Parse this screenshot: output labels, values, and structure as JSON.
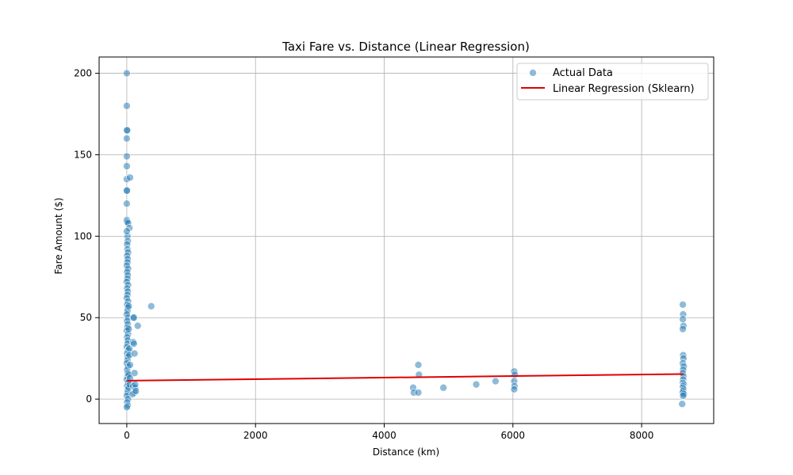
{
  "chart_data": {
    "type": "scatter",
    "title": "Taxi Fare vs. Distance (Linear Regression)",
    "xlabel": "Distance (km)",
    "ylabel": "Fare Amount ($)",
    "xlim": [
      -430,
      9120
    ],
    "ylim": [
      -15,
      210
    ],
    "xticks": [
      0,
      2000,
      4000,
      6000,
      8000
    ],
    "yticks": [
      0,
      50,
      100,
      150,
      200
    ],
    "grid": true,
    "legend_position": "top-right",
    "colors": {
      "points": "#1f77b4",
      "line": "#e00000"
    },
    "series": [
      {
        "name": "Actual Data",
        "kind": "scatter",
        "points": [
          [
            0,
            200
          ],
          [
            0,
            180
          ],
          [
            2,
            165
          ],
          [
            5,
            165
          ],
          [
            0,
            160
          ],
          [
            0,
            149
          ],
          [
            0,
            143
          ],
          [
            0,
            135
          ],
          [
            0,
            128
          ],
          [
            2,
            128
          ],
          [
            50,
            136
          ],
          [
            0,
            120
          ],
          [
            0,
            110
          ],
          [
            5,
            109
          ],
          [
            20,
            108
          ],
          [
            40,
            105
          ],
          [
            10,
            100
          ],
          [
            0,
            103
          ],
          [
            15,
            97
          ],
          [
            5,
            95
          ],
          [
            10,
            92
          ],
          [
            20,
            90
          ],
          [
            5,
            88
          ],
          [
            15,
            86
          ],
          [
            10,
            84
          ],
          [
            0,
            82
          ],
          [
            20,
            80
          ],
          [
            5,
            78
          ],
          [
            15,
            76
          ],
          [
            10,
            74
          ],
          [
            0,
            72
          ],
          [
            20,
            70
          ],
          [
            5,
            68
          ],
          [
            15,
            66
          ],
          [
            10,
            64
          ],
          [
            0,
            62
          ],
          [
            20,
            60
          ],
          [
            5,
            58
          ],
          [
            15,
            56
          ],
          [
            10,
            54
          ],
          [
            0,
            52
          ],
          [
            20,
            50
          ],
          [
            5,
            48
          ],
          [
            15,
            46
          ],
          [
            10,
            44
          ],
          [
            0,
            42
          ],
          [
            20,
            40
          ],
          [
            5,
            38
          ],
          [
            15,
            36
          ],
          [
            10,
            34
          ],
          [
            0,
            32
          ],
          [
            20,
            30
          ],
          [
            5,
            28
          ],
          [
            15,
            26
          ],
          [
            10,
            24
          ],
          [
            0,
            22
          ],
          [
            20,
            20
          ],
          [
            5,
            18
          ],
          [
            15,
            16
          ],
          [
            10,
            14
          ],
          [
            0,
            12
          ],
          [
            20,
            10
          ],
          [
            5,
            8
          ],
          [
            15,
            6
          ],
          [
            10,
            4
          ],
          [
            0,
            2
          ],
          [
            20,
            0
          ],
          [
            5,
            -2
          ],
          [
            15,
            -4
          ],
          [
            0,
            -5
          ],
          [
            30,
            57
          ],
          [
            30,
            43
          ],
          [
            30,
            15
          ],
          [
            30,
            7
          ],
          [
            40,
            31
          ],
          [
            40,
            27
          ],
          [
            50,
            21
          ],
          [
            50,
            13
          ],
          [
            45,
            9
          ],
          [
            100,
            50
          ],
          [
            110,
            50
          ],
          [
            100,
            35
          ],
          [
            110,
            34
          ],
          [
            120,
            28
          ],
          [
            120,
            16
          ],
          [
            100,
            8
          ],
          [
            130,
            7
          ],
          [
            120,
            4
          ],
          [
            90,
            3
          ],
          [
            130,
            9
          ],
          [
            140,
            5
          ],
          [
            170,
            45
          ],
          [
            380,
            57
          ],
          [
            4450,
            7
          ],
          [
            4460,
            4
          ],
          [
            4530,
            21
          ],
          [
            4540,
            15
          ],
          [
            4530,
            4
          ],
          [
            4920,
            7
          ],
          [
            5430,
            9
          ],
          [
            5730,
            11
          ],
          [
            6020,
            17
          ],
          [
            6030,
            15
          ],
          [
            6020,
            11
          ],
          [
            6025,
            8
          ],
          [
            6020,
            6
          ],
          [
            8640,
            58
          ],
          [
            8645,
            52
          ],
          [
            8640,
            49
          ],
          [
            8650,
            45
          ],
          [
            8640,
            43
          ],
          [
            8645,
            27
          ],
          [
            8650,
            25
          ],
          [
            8640,
            22
          ],
          [
            8655,
            20
          ],
          [
            8645,
            18
          ],
          [
            8640,
            16
          ],
          [
            8650,
            14
          ],
          [
            8645,
            12
          ],
          [
            8640,
            10
          ],
          [
            8655,
            9
          ],
          [
            8645,
            8
          ],
          [
            8640,
            7
          ],
          [
            8650,
            6
          ],
          [
            8645,
            5
          ],
          [
            8640,
            4
          ],
          [
            8655,
            3
          ],
          [
            8645,
            2
          ],
          [
            8630,
            -3
          ]
        ]
      },
      {
        "name": "Linear Regression (Sklearn)",
        "kind": "line",
        "points": [
          [
            0,
            11.3
          ],
          [
            8650,
            15.4
          ]
        ]
      }
    ]
  }
}
